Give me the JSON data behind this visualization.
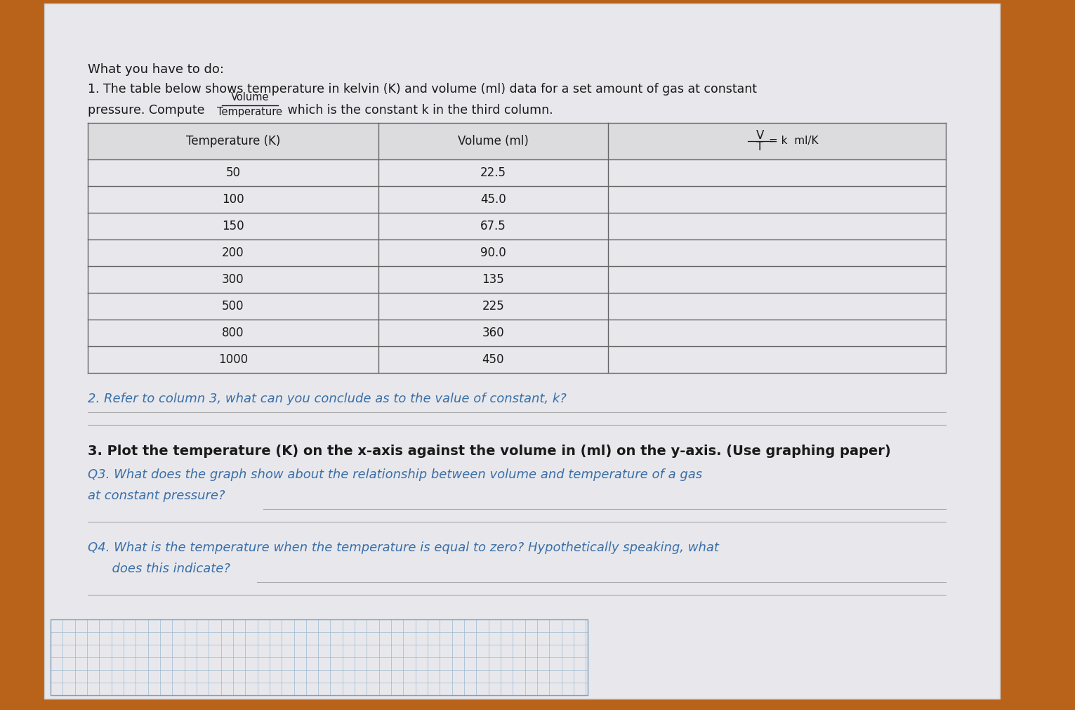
{
  "bg_color": "#b8621a",
  "paper_color": "#e8e8ec",
  "title_line1": "What you have to do:",
  "title_line2": "1. The table below shows temperature in kelvin (K) and volume (ml) data for a set amount of gas at constant",
  "title_line3_pre": "pressure. Compute ",
  "title_line3_frac_num": "Volume",
  "title_line3_frac_den": "Temperature",
  "title_line3_post": " which is the constant k in the third column.",
  "col1_header": "Temperature (K)",
  "col2_header": "Volume (ml)",
  "temperatures": [
    50,
    100,
    150,
    200,
    300,
    500,
    800,
    1000
  ],
  "volumes": [
    "22.5",
    "45.0",
    "67.5",
    "90.0",
    "135",
    "225",
    "360",
    "450"
  ],
  "q2_text": "2. Refer to column 3, what can you conclude as to the value of constant, k?",
  "q3_text": "3. Plot the temperature (K) on the x-axis against the volume in (ml) on the y-axis. (Use graphing paper)",
  "q3_sub": "Q3. What does the graph show about the relationship between volume and temperature of a gas",
  "q3_sub2": "at constant pressure?",
  "q4_text": "Q4. What is the temperature when the temperature is equal to zero? Hypothetically speaking, what",
  "q4_sub": "      does this indicate?",
  "text_color_black": "#1a1a1a",
  "text_color_blue": "#3a6fa8",
  "grid_color": "#9ab8d0",
  "table_line_color": "#666666"
}
